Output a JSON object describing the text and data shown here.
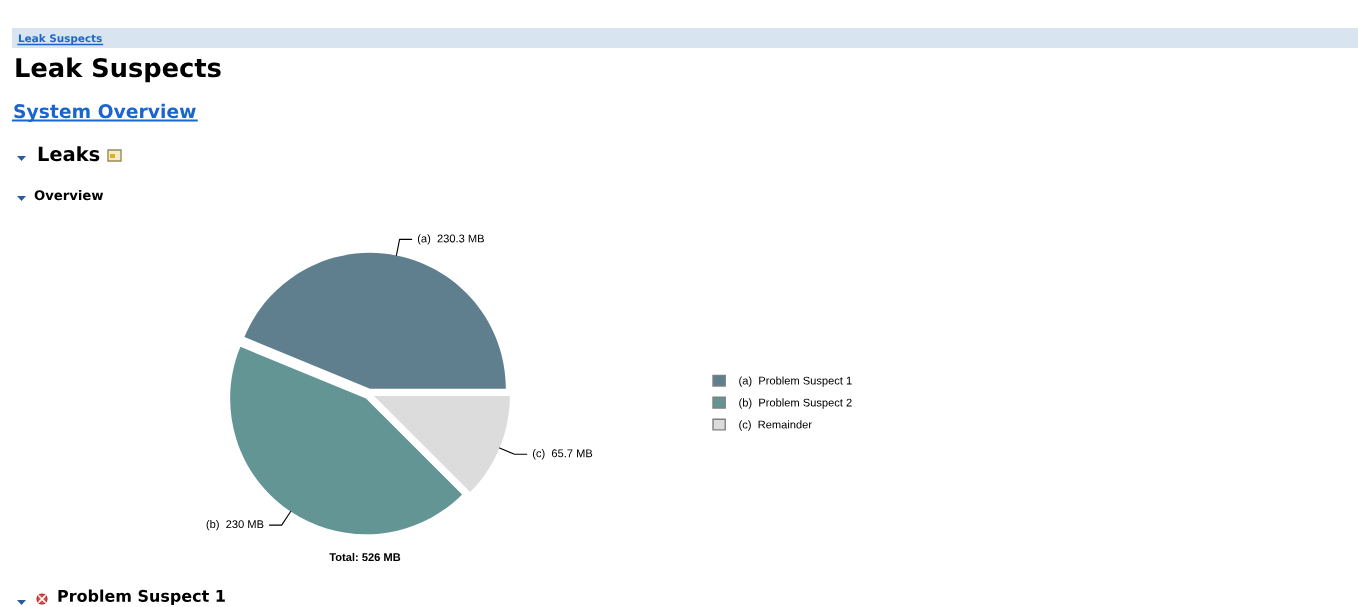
{
  "chart_data": {
    "type": "pie",
    "title": "Leak Suspects",
    "categories": [
      "(a)  Problem Suspect 1",
      "(b)  Problem Suspect 2",
      "(c)  Remainder"
    ],
    "values": [
      230.3,
      230,
      65.7
    ],
    "colors": [
      "#5f7f8f",
      "#639594",
      "#dcdcdc"
    ],
    "value_labels": [
      "(a)  230.3 MB",
      "(b)  230 MB",
      "(c)  65.7 MB"
    ],
    "legend": "right",
    "annotations": [
      "Leak Suspects",
      "System Overview",
      "Leaks",
      "Overview",
      "Total: 526 MB",
      "Problem Suspect 1"
    ]
  }
}
